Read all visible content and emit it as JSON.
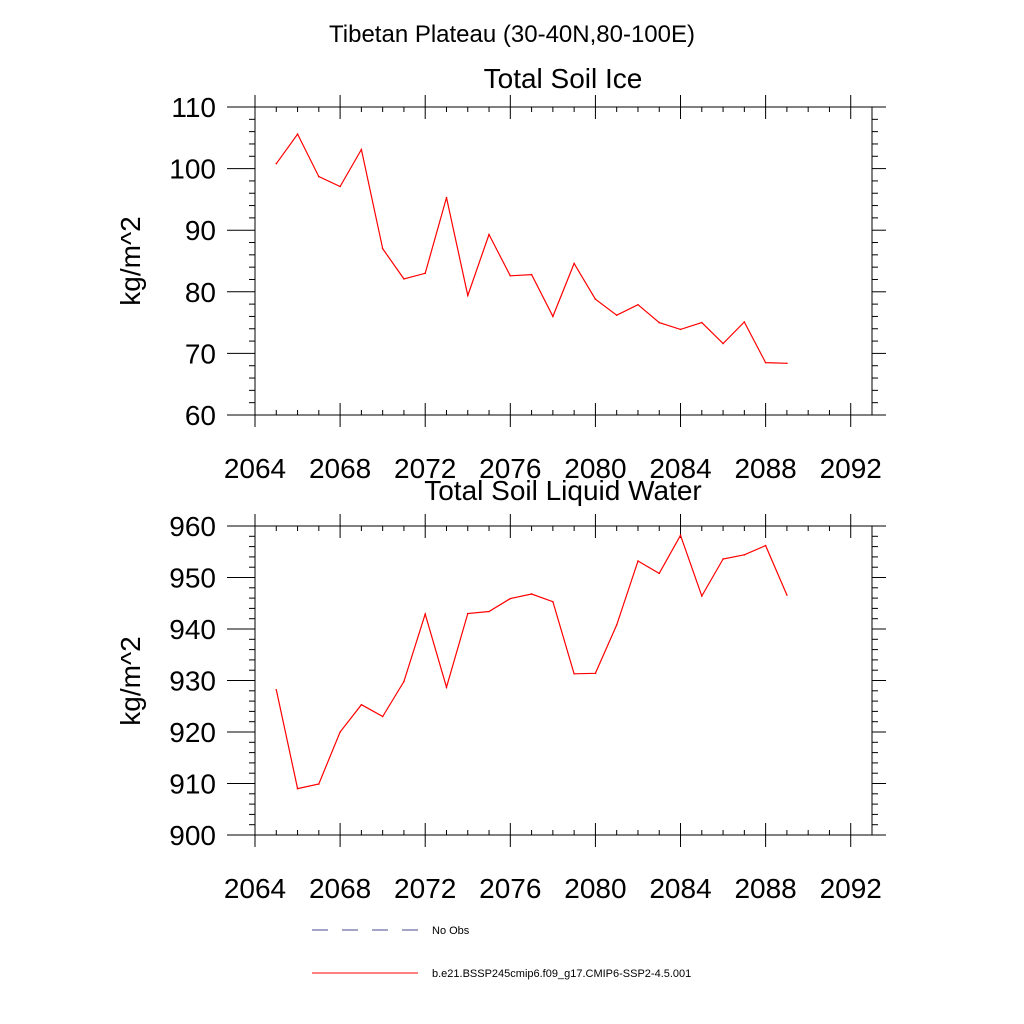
{
  "figure": {
    "suptitle": "Tibetan Plateau (30-40N,80-100E)"
  },
  "legend": {
    "entries": [
      {
        "label": "No Obs",
        "color": "#4a4a8c",
        "style": "dashed"
      },
      {
        "label": "b.e21.BSSP245cmip6.f09_g17.CMIP6-SSP2-4.5.001",
        "color": "#ff0000",
        "style": "solid"
      }
    ]
  },
  "chart_data": [
    {
      "type": "line",
      "title": "Total Soil Ice",
      "xlabel": "",
      "ylabel": "kg/m^2",
      "xlim": [
        2064,
        2093
      ],
      "ylim": [
        60,
        110
      ],
      "xticks": [
        2064,
        2068,
        2072,
        2076,
        2080,
        2084,
        2088,
        2092
      ],
      "yticks": [
        60,
        70,
        80,
        90,
        100,
        110
      ],
      "grid": false,
      "series": [
        {
          "name": "b.e21.BSSP245cmip6.f09_g17.CMIP6-SSP2-4.5.001",
          "color": "#ff0000",
          "x": [
            2065,
            2066,
            2067,
            2068,
            2069,
            2070,
            2071,
            2072,
            2073,
            2074,
            2075,
            2076,
            2077,
            2078,
            2079,
            2080,
            2081,
            2082,
            2083,
            2084,
            2085,
            2086,
            2087,
            2088,
            2089
          ],
          "y": [
            100.8,
            105.6,
            98.7,
            97.1,
            103.1,
            87.0,
            82.1,
            83.0,
            95.3,
            79.4,
            89.3,
            82.6,
            82.8,
            76.0,
            84.6,
            78.8,
            76.2,
            77.9,
            75.0,
            73.9,
            75.0,
            71.6,
            75.1,
            68.5,
            68.4
          ]
        }
      ]
    },
    {
      "type": "line",
      "title": "Total Soil Liquid Water",
      "xlabel": "",
      "ylabel": "kg/m^2",
      "xlim": [
        2064,
        2093
      ],
      "ylim": [
        900,
        960
      ],
      "xticks": [
        2064,
        2068,
        2072,
        2076,
        2080,
        2084,
        2088,
        2092
      ],
      "yticks": [
        900,
        910,
        920,
        930,
        940,
        950,
        960
      ],
      "grid": false,
      "series": [
        {
          "name": "b.e21.BSSP245cmip6.f09_g17.CMIP6-SSP2-4.5.001",
          "color": "#ff0000",
          "x": [
            2065,
            2066,
            2067,
            2068,
            2069,
            2070,
            2071,
            2072,
            2073,
            2074,
            2075,
            2076,
            2077,
            2078,
            2079,
            2080,
            2081,
            2082,
            2083,
            2084,
            2085,
            2086,
            2087,
            2088,
            2089
          ],
          "y": [
            928.2,
            909.0,
            909.9,
            920.0,
            925.3,
            923.0,
            929.8,
            942.9,
            928.7,
            943.0,
            943.4,
            945.9,
            946.8,
            945.3,
            931.3,
            931.4,
            940.8,
            953.2,
            950.8,
            958.2,
            946.4,
            953.6,
            954.4,
            956.2,
            946.6
          ]
        }
      ]
    }
  ]
}
